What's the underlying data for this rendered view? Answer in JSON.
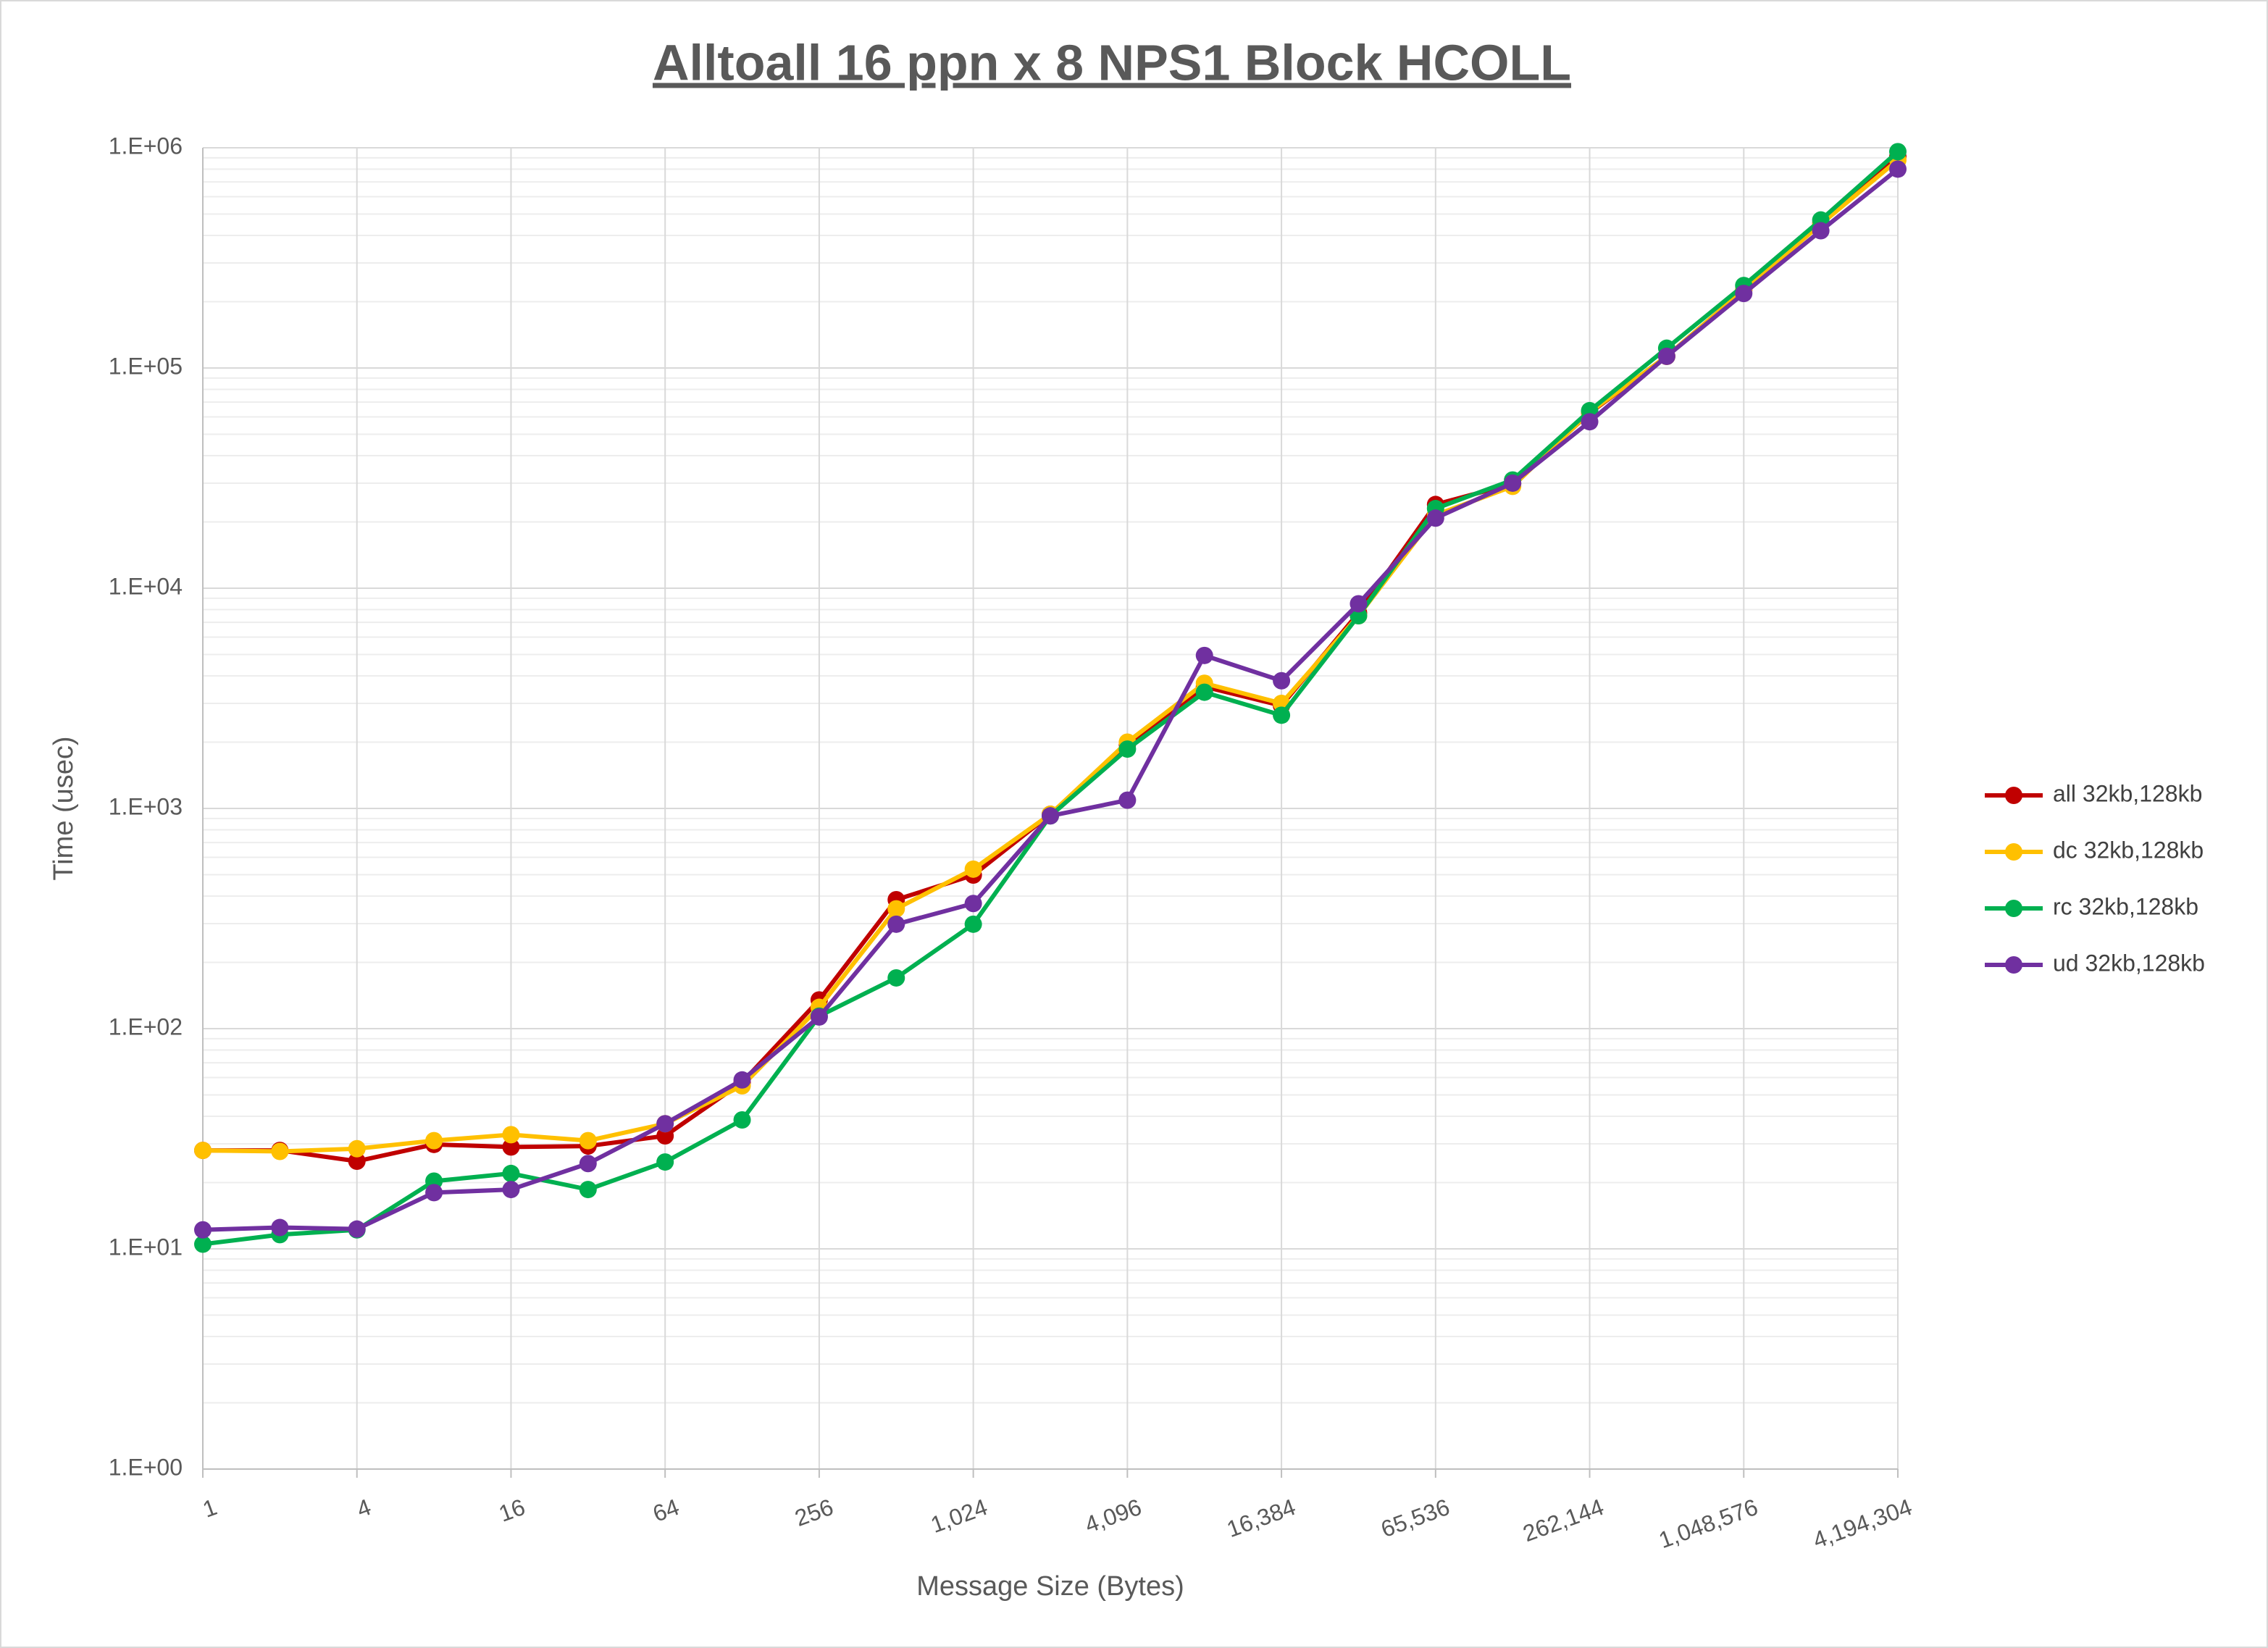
{
  "chart_data": {
    "type": "line",
    "title": "Alltoall 16 ppn x 8 NPS1 Block HCOLL",
    "x_label": "Message Size (Bytes)",
    "y_label": "Time (usec)",
    "x": [
      1,
      2,
      4,
      8,
      16,
      32,
      64,
      128,
      256,
      512,
      1024,
      2048,
      4096,
      8192,
      16384,
      32768,
      65536,
      131072,
      262144,
      524288,
      1048576,
      2097152,
      4194304
    ],
    "series": [
      {
        "name": "all 32kb,128kb",
        "color": "#c00000",
        "values": [
          28,
          28,
          25,
          29.8,
          29,
          29.3,
          32.6,
          57,
          135,
          385,
          498,
          941,
          1950,
          3570,
          2930,
          7730,
          24000,
          29800,
          62500,
          113000,
          226000,
          455000,
          913000
        ]
      },
      {
        "name": "dc 32kb,128kb",
        "color": "#ffc000",
        "values": [
          28,
          27.7,
          28.5,
          31,
          33,
          31,
          37,
          55,
          125,
          350,
          530,
          941,
          2000,
          3700,
          3000,
          7500,
          21500,
          29000,
          63000,
          113000,
          226000,
          450000,
          880000
        ]
      },
      {
        "name": "rc 32kb,128kb",
        "color": "#00b050",
        "values": [
          10.5,
          11.6,
          12.2,
          20.3,
          22,
          18.6,
          24.8,
          38.5,
          114,
          170,
          298,
          925,
          1860,
          3370,
          2650,
          7500,
          23000,
          31000,
          64000,
          123000,
          237000,
          470000,
          960000
        ]
      },
      {
        "name": "ud 32kb,128kb",
        "color": "#7030a0",
        "values": [
          12.2,
          12.5,
          12.3,
          18,
          18.6,
          24.4,
          37,
          58.5,
          113,
          298,
          370,
          925,
          1090,
          4950,
          3800,
          8500,
          20800,
          30000,
          57000,
          113000,
          218000,
          420000,
          800000
        ]
      }
    ],
    "xscale": "log",
    "yscale": "log",
    "xlim": [
      1,
      4194304
    ],
    "ylim": [
      1,
      1000000
    ],
    "xticks": [
      1,
      4,
      16,
      64,
      256,
      {
        "value": 1024,
        "label": "1,024"
      },
      {
        "value": 4096,
        "label": "4,096"
      },
      {
        "value": 16384,
        "label": "16,384"
      },
      {
        "value": 65536,
        "label": "65,536"
      },
      {
        "value": 262144,
        "label": "262,144"
      },
      {
        "value": 1048576,
        "label": "1,048,576"
      },
      {
        "value": 4194304,
        "label": "4,194,304"
      }
    ],
    "yticks": [
      {
        "value": 1,
        "label": "1.E+00"
      },
      {
        "value": 10,
        "label": "1.E+01"
      },
      {
        "value": 100,
        "label": "1.E+02"
      },
      {
        "value": 1000,
        "label": "1.E+03"
      },
      {
        "value": 10000,
        "label": "1.E+04"
      },
      {
        "value": 100000,
        "label": "1.E+05"
      },
      {
        "value": 1000000,
        "label": "1.E+06"
      }
    ],
    "grid": true,
    "minor_grid": true,
    "legend": "right"
  }
}
